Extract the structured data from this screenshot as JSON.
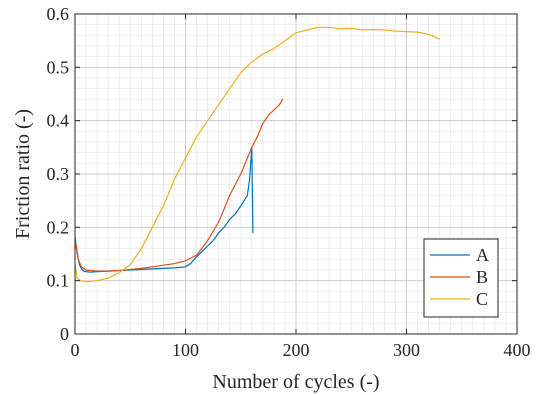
{
  "chart_data": {
    "type": "line",
    "title": "",
    "xlabel": "Number of cycles (-)",
    "ylabel": "Friction ratio (-)",
    "xlim": [
      0,
      400
    ],
    "ylim": [
      0,
      0.6
    ],
    "x_ticks": [
      0,
      100,
      200,
      300,
      400
    ],
    "x_tick_labels": [
      "0",
      "100",
      "200",
      "300",
      "400"
    ],
    "y_ticks": [
      0,
      0.1,
      0.2,
      0.3,
      0.4,
      0.5,
      0.6
    ],
    "y_tick_labels": [
      "0",
      "0.1",
      "0.2",
      "0.3",
      "0.4",
      "0.5",
      "0.6"
    ],
    "x_minor_step": 10,
    "y_minor_step": 0.02,
    "grid": true,
    "legend_position": "bottom-right",
    "series": [
      {
        "name": "A",
        "color": "#0072BD",
        "x": [
          0,
          2,
          4,
          6,
          8,
          10,
          14,
          20,
          30,
          40,
          50,
          60,
          70,
          80,
          90,
          100,
          105,
          110,
          115,
          120,
          125,
          130,
          135,
          140,
          145,
          150,
          153,
          156,
          158,
          160,
          161
        ],
        "y": [
          0.18,
          0.15,
          0.13,
          0.122,
          0.118,
          0.117,
          0.116,
          0.117,
          0.118,
          0.119,
          0.12,
          0.121,
          0.122,
          0.123,
          0.124,
          0.126,
          0.133,
          0.145,
          0.155,
          0.165,
          0.175,
          0.19,
          0.2,
          0.215,
          0.225,
          0.24,
          0.25,
          0.26,
          0.29,
          0.35,
          0.19
        ]
      },
      {
        "name": "B",
        "color": "#D95319",
        "x": [
          0,
          3,
          6,
          10,
          20,
          30,
          40,
          50,
          60,
          70,
          80,
          90,
          100,
          110,
          120,
          130,
          140,
          150,
          160,
          165,
          170,
          175,
          180,
          185,
          188
        ],
        "y": [
          0.18,
          0.14,
          0.125,
          0.12,
          0.118,
          0.118,
          0.119,
          0.121,
          0.123,
          0.126,
          0.129,
          0.132,
          0.137,
          0.148,
          0.175,
          0.21,
          0.26,
          0.3,
          0.35,
          0.37,
          0.395,
          0.41,
          0.42,
          0.43,
          0.44
        ]
      },
      {
        "name": "C",
        "color": "#EDB120",
        "x": [
          0,
          2,
          5,
          10,
          20,
          30,
          40,
          50,
          60,
          70,
          80,
          90,
          100,
          110,
          120,
          130,
          140,
          150,
          160,
          170,
          180,
          190,
          200,
          210,
          220,
          230,
          240,
          250,
          260,
          270,
          280,
          290,
          300,
          310,
          320,
          330
        ],
        "y": [
          0.13,
          0.105,
          0.1,
          0.098,
          0.1,
          0.105,
          0.115,
          0.13,
          0.16,
          0.2,
          0.24,
          0.29,
          0.33,
          0.37,
          0.4,
          0.43,
          0.46,
          0.49,
          0.51,
          0.525,
          0.535,
          0.55,
          0.565,
          0.57,
          0.575,
          0.575,
          0.572,
          0.573,
          0.57,
          0.571,
          0.57,
          0.568,
          0.567,
          0.566,
          0.562,
          0.553
        ]
      }
    ]
  }
}
